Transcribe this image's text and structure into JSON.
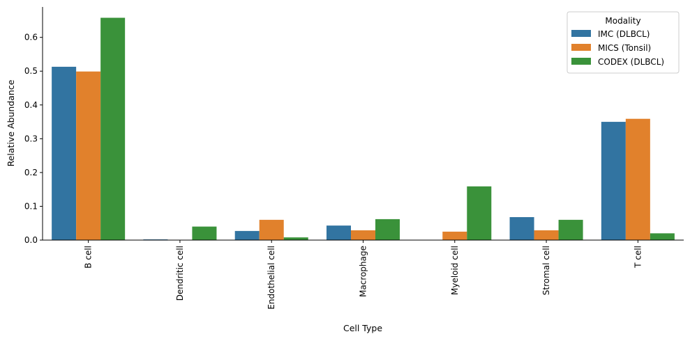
{
  "chart_data": {
    "type": "bar",
    "xlabel": "Cell Type",
    "ylabel": "Relative Abundance",
    "ylim": [
      0,
      0.69
    ],
    "yticks": [
      "0.0",
      "0.1",
      "0.2",
      "0.3",
      "0.4",
      "0.5",
      "0.6"
    ],
    "categories": [
      "B cell",
      "Dendritic cell",
      "Endothelial cell",
      "Macrophage",
      "Myeloid cell",
      "Stromal cell",
      "T cell"
    ],
    "series": [
      {
        "name": "IMC (DLBCL)",
        "color": "#3274a1",
        "values": [
          0.513,
          0.002,
          0.027,
          0.043,
          0.0,
          0.068,
          0.35
        ]
      },
      {
        "name": "MICS (Tonsil)",
        "color": "#e1812c",
        "values": [
          0.499,
          0.0,
          0.06,
          0.029,
          0.025,
          0.029,
          0.359
        ]
      },
      {
        "name": "CODEX (DLBCL)",
        "color": "#3a923a",
        "values": [
          0.658,
          0.04,
          0.008,
          0.062,
          0.159,
          0.06,
          0.02
        ]
      }
    ],
    "legend": {
      "title": "Modality",
      "placement": "top-right"
    },
    "grid": false
  }
}
